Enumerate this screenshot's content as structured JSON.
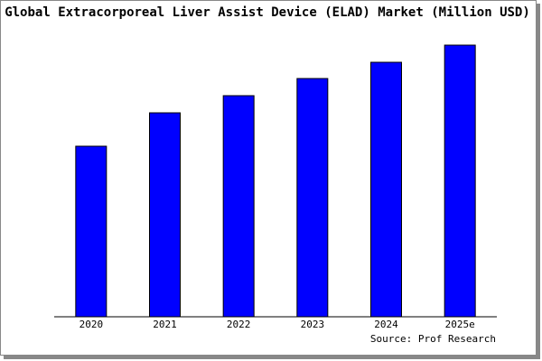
{
  "chart_data": {
    "type": "bar",
    "title": "Global Extracorporeal Liver Assist Device (ELAD) Market (Million USD)",
    "categories": [
      "2020",
      "2021",
      "2022",
      "2023",
      "2024",
      "2025e"
    ],
    "values": [
      189,
      226,
      245,
      264,
      282,
      301
    ],
    "color": "#0000ff",
    "ylim": [
      0,
      303
    ],
    "source": "Source: Prof Research"
  }
}
